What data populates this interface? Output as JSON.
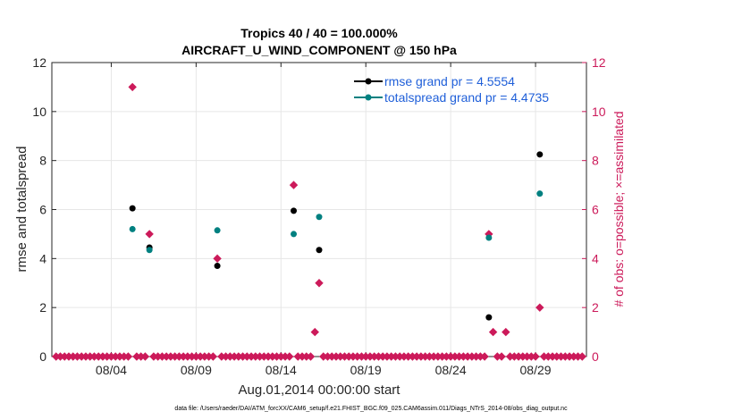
{
  "chart_data": {
    "type": "scatter",
    "title": "Tropics 40 / 40 = 100.000%",
    "subtitle": "AIRCRAFT_U_WIND_COMPONENT @ 150 hPa",
    "xlabel": "Aug.01,2014 00:00:00 start",
    "ylabel": "rmse and totalspread",
    "y2label": "# of obs: o=possible; ×=assimilated",
    "xlim": [
      0,
      31.5
    ],
    "ylim": [
      0,
      12
    ],
    "y2lim": [
      0,
      12
    ],
    "x_ticks": [
      {
        "x": 3.5,
        "label": "08/04"
      },
      {
        "x": 8.5,
        "label": "08/09"
      },
      {
        "x": 13.5,
        "label": "08/14"
      },
      {
        "x": 18.5,
        "label": "08/19"
      },
      {
        "x": 23.5,
        "label": "08/24"
      },
      {
        "x": 28.5,
        "label": "08/29"
      }
    ],
    "y_ticks": [
      "0",
      "2",
      "4",
      "6",
      "8",
      "10",
      "12"
    ],
    "y2_ticks": [
      "0",
      "2",
      "4",
      "6",
      "8",
      "10",
      "12"
    ],
    "grid": true,
    "colors": {
      "rmse": "#000000",
      "totalspread": "#008080",
      "obs": "#cc1a5a",
      "axis": "#262626",
      "legend_text": "#1f5fd9",
      "grid": "#e6e6e6"
    },
    "series": [
      {
        "name": "rmse grand pr = 4.5554",
        "key": "rmse",
        "x": [
          4.75,
          5.75,
          9.75,
          14.25,
          15.75,
          25.75,
          28.75
        ],
        "y": [
          6.05,
          4.45,
          3.7,
          5.95,
          4.35,
          1.6,
          8.25
        ]
      },
      {
        "name": "totalspread grand pr = 4.4735",
        "key": "totalspread",
        "x": [
          4.75,
          5.75,
          9.75,
          14.25,
          15.75,
          25.75,
          28.75
        ],
        "y": [
          5.2,
          4.35,
          5.15,
          5.0,
          5.7,
          4.85,
          6.65
        ]
      }
    ],
    "obs_count": {
      "name": "# of obs",
      "x": [
        0.25,
        0.5,
        0.75,
        1.0,
        1.25,
        1.5,
        1.75,
        2.0,
        2.25,
        2.5,
        2.75,
        3.0,
        3.25,
        3.5,
        3.75,
        4.0,
        4.25,
        4.5,
        4.75,
        5.0,
        5.25,
        5.5,
        5.75,
        6.0,
        6.25,
        6.5,
        6.75,
        7.0,
        7.25,
        7.5,
        7.75,
        8.0,
        8.25,
        8.5,
        8.75,
        9.0,
        9.25,
        9.5,
        9.75,
        10.0,
        10.25,
        10.5,
        10.75,
        11.0,
        11.25,
        11.5,
        11.75,
        12.0,
        12.25,
        12.5,
        12.75,
        13.0,
        13.25,
        13.5,
        13.75,
        14.0,
        14.25,
        14.5,
        14.75,
        15.0,
        15.25,
        15.5,
        15.75,
        16.0,
        16.25,
        16.5,
        16.75,
        17.0,
        17.25,
        17.5,
        17.75,
        18.0,
        18.25,
        18.5,
        18.75,
        19.0,
        19.25,
        19.5,
        19.75,
        20.0,
        20.25,
        20.5,
        20.75,
        21.0,
        21.25,
        21.5,
        21.75,
        22.0,
        22.25,
        22.5,
        22.75,
        23.0,
        23.25,
        23.5,
        23.75,
        24.0,
        24.25,
        24.5,
        24.75,
        25.0,
        25.25,
        25.5,
        25.75,
        26.0,
        26.25,
        26.5,
        26.75,
        27.0,
        27.25,
        27.5,
        27.75,
        28.0,
        28.25,
        28.5,
        28.75,
        29.0,
        29.25,
        29.5,
        29.75,
        30.0,
        30.25,
        30.5,
        30.75,
        31.0,
        31.25
      ],
      "y": [
        0,
        0,
        0,
        0,
        0,
        0,
        0,
        0,
        0,
        0,
        0,
        0,
        0,
        0,
        0,
        0,
        0,
        0,
        11,
        0,
        0,
        0,
        5,
        0,
        0,
        0,
        0,
        0,
        0,
        0,
        0,
        0,
        0,
        0,
        0,
        0,
        0,
        0,
        4,
        0,
        0,
        0,
        0,
        0,
        0,
        0,
        0,
        0,
        0,
        0,
        0,
        0,
        0,
        0,
        0,
        0,
        7,
        0,
        0,
        0,
        0,
        1,
        3,
        0,
        0,
        0,
        0,
        0,
        0,
        0,
        0,
        0,
        0,
        0,
        0,
        0,
        0,
        0,
        0,
        0,
        0,
        0,
        0,
        0,
        0,
        0,
        0,
        0,
        0,
        0,
        0,
        0,
        0,
        0,
        0,
        0,
        0,
        0,
        0,
        0,
        0,
        0,
        5,
        1,
        0,
        0,
        1,
        0,
        0,
        0,
        0,
        0,
        0,
        0,
        2,
        0,
        0,
        0,
        0,
        0,
        0,
        0,
        0,
        0,
        0
      ]
    },
    "legend_position": "top-right"
  },
  "footer": {
    "data_file": "data file: /Users/raeder/DAI/ATM_forcXX/CAM6_setup/f.e21.FHIST_BGC.f09_025.CAM6assim.011/Diags_NTrS_2014-08/obs_diag_output.nc"
  }
}
